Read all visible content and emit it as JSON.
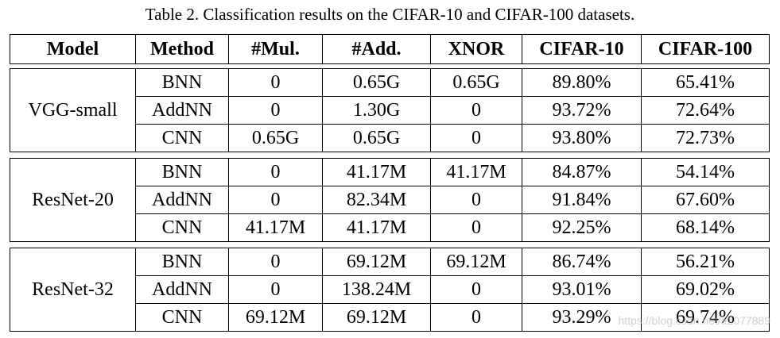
{
  "caption": "Table 2. Classification results on the CIFAR-10 and CIFAR-100 datasets.",
  "headers": [
    "Model",
    "Method",
    "#Mul.",
    "#Add.",
    "XNOR",
    "CIFAR-10",
    "CIFAR-100"
  ],
  "groups": [
    {
      "model": "VGG-small",
      "rows": [
        [
          "BNN",
          "0",
          "0.65G",
          "0.65G",
          "89.80%",
          "65.41%"
        ],
        [
          "AddNN",
          "0",
          "1.30G",
          "0",
          "93.72%",
          "72.64%"
        ],
        [
          "CNN",
          "0.65G",
          "0.65G",
          "0",
          "93.80%",
          "72.73%"
        ]
      ]
    },
    {
      "model": "ResNet-20",
      "rows": [
        [
          "BNN",
          "0",
          "41.17M",
          "41.17M",
          "84.87%",
          "54.14%"
        ],
        [
          "AddNN",
          "0",
          "82.34M",
          "0",
          "91.84%",
          "67.60%"
        ],
        [
          "CNN",
          "41.17M",
          "41.17M",
          "0",
          "92.25%",
          "68.14%"
        ]
      ]
    },
    {
      "model": "ResNet-32",
      "rows": [
        [
          "BNN",
          "0",
          "69.12M",
          "69.12M",
          "86.74%",
          "56.21%"
        ],
        [
          "AddNN",
          "0",
          "138.24M",
          "0",
          "93.01%",
          "69.02%"
        ],
        [
          "CNN",
          "69.12M",
          "69.12M",
          "0",
          "93.29%",
          "69.74%"
        ]
      ]
    }
  ],
  "watermark": "https://blog.csdn.net/a2077889"
}
